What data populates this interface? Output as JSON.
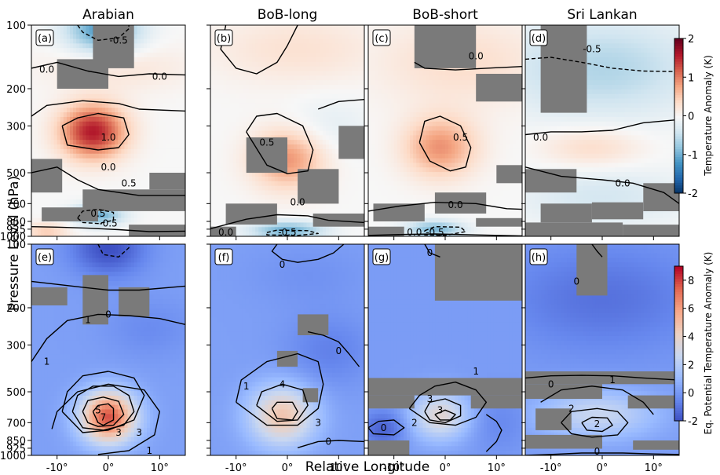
{
  "chart_data": {
    "type": "heatmap",
    "xlabel": "Relative Longitude",
    "ylabel": "Pressure Level (hPa)",
    "x_ticks": [
      -10,
      0,
      10
    ],
    "x_tick_labels": [
      "-10°",
      "0°",
      "10°"
    ],
    "xlim": [
      -15,
      15
    ],
    "y_ticks": [
      100,
      200,
      300,
      500,
      700,
      850,
      925,
      1000
    ],
    "y_tick_labels": [
      "100",
      "200",
      "300",
      "500",
      "700",
      "850",
      "925",
      "1000"
    ],
    "ylim": [
      1000,
      100
    ],
    "y_scale": "log",
    "columns": [
      "Arabian",
      "BoB-long",
      "BoB-short",
      "Sri Lankan"
    ],
    "rows": [
      {
        "field": "Temperature Anomaly (K)",
        "colorbar_label": "Temperature Anomaly (K)",
        "colorbar_ticks": [
          2,
          1,
          0,
          -1,
          -2
        ],
        "colorbar_tick_labels": [
          "2",
          "1",
          "0",
          "-1",
          "-2"
        ],
        "colormap": [
          "#053061",
          "#2166ac",
          "#4393c3",
          "#92c5de",
          "#d1e5f0",
          "#f7f7f7",
          "#fddbc7",
          "#f4a582",
          "#d6604d",
          "#b2182b",
          "#67001f"
        ],
        "panels": [
          {
            "label": "(a)",
            "column": "Arabian",
            "contour_labels": [
              "-0.5",
              "0.0",
              "0.0",
              "1.0",
              "0.5",
              "0.0",
              "0.5",
              "-0.5"
            ],
            "peak_anomaly": 1.6,
            "peak_level_hPa": 320
          },
          {
            "label": "(b)",
            "column": "BoB-long",
            "contour_labels": [
              "0.5",
              "0.0",
              "0.0",
              "-0.5"
            ],
            "peak_anomaly": 0.9,
            "peak_level_hPa": 430
          },
          {
            "label": "(c)",
            "column": "BoB-short",
            "contour_labels": [
              "0.0",
              "0.5",
              "0.0",
              "0.0",
              "-0.5"
            ],
            "peak_anomaly": 0.9,
            "peak_level_hPa": 380
          },
          {
            "label": "(d)",
            "column": "Sri Lankan",
            "contour_labels": [
              "-0.5",
              "0.0",
              "0.0"
            ],
            "peak_anomaly": 0.4,
            "peak_level_hPa": 380
          }
        ]
      },
      {
        "field": "Eq. Potential Temperature Anomaly (K)",
        "colorbar_label": "Eq. Potential Temperature Anomaly (K)",
        "colorbar_ticks": [
          8,
          6,
          4,
          2,
          0,
          -2
        ],
        "colorbar_tick_labels": [
          "8",
          "6",
          "4",
          "2",
          "0",
          "-2"
        ],
        "colormap": [
          "#3b4cc0",
          "#6788ee",
          "#9abbff",
          "#c9d7f0",
          "#edd1c2",
          "#f7a889",
          "#e26952",
          "#b40426"
        ],
        "panels": [
          {
            "label": "(e)",
            "column": "Arabian",
            "contour_labels": [
              "0",
              "1",
              "1",
              "3",
              "5",
              "7",
              "3",
              "1"
            ],
            "peak_anomaly": 7.5,
            "peak_level_hPa": 660
          },
          {
            "label": "(f)",
            "column": "BoB-long",
            "contour_labels": [
              "0",
              "1",
              "0",
              "4",
              "3",
              "0"
            ],
            "peak_anomaly": 4.5,
            "peak_level_hPa": 650
          },
          {
            "label": "(g)",
            "column": "BoB-short",
            "contour_labels": [
              "0",
              "1",
              "3",
              "2",
              "3",
              "0"
            ],
            "peak_anomaly": 3.5,
            "peak_level_hPa": 650
          },
          {
            "label": "(h)",
            "column": "Sri Lankan",
            "contour_labels": [
              "0",
              "0",
              "1",
              "2",
              "2",
              "0"
            ],
            "peak_anomaly": 2.5,
            "peak_level_hPa": 650
          }
        ]
      }
    ]
  }
}
